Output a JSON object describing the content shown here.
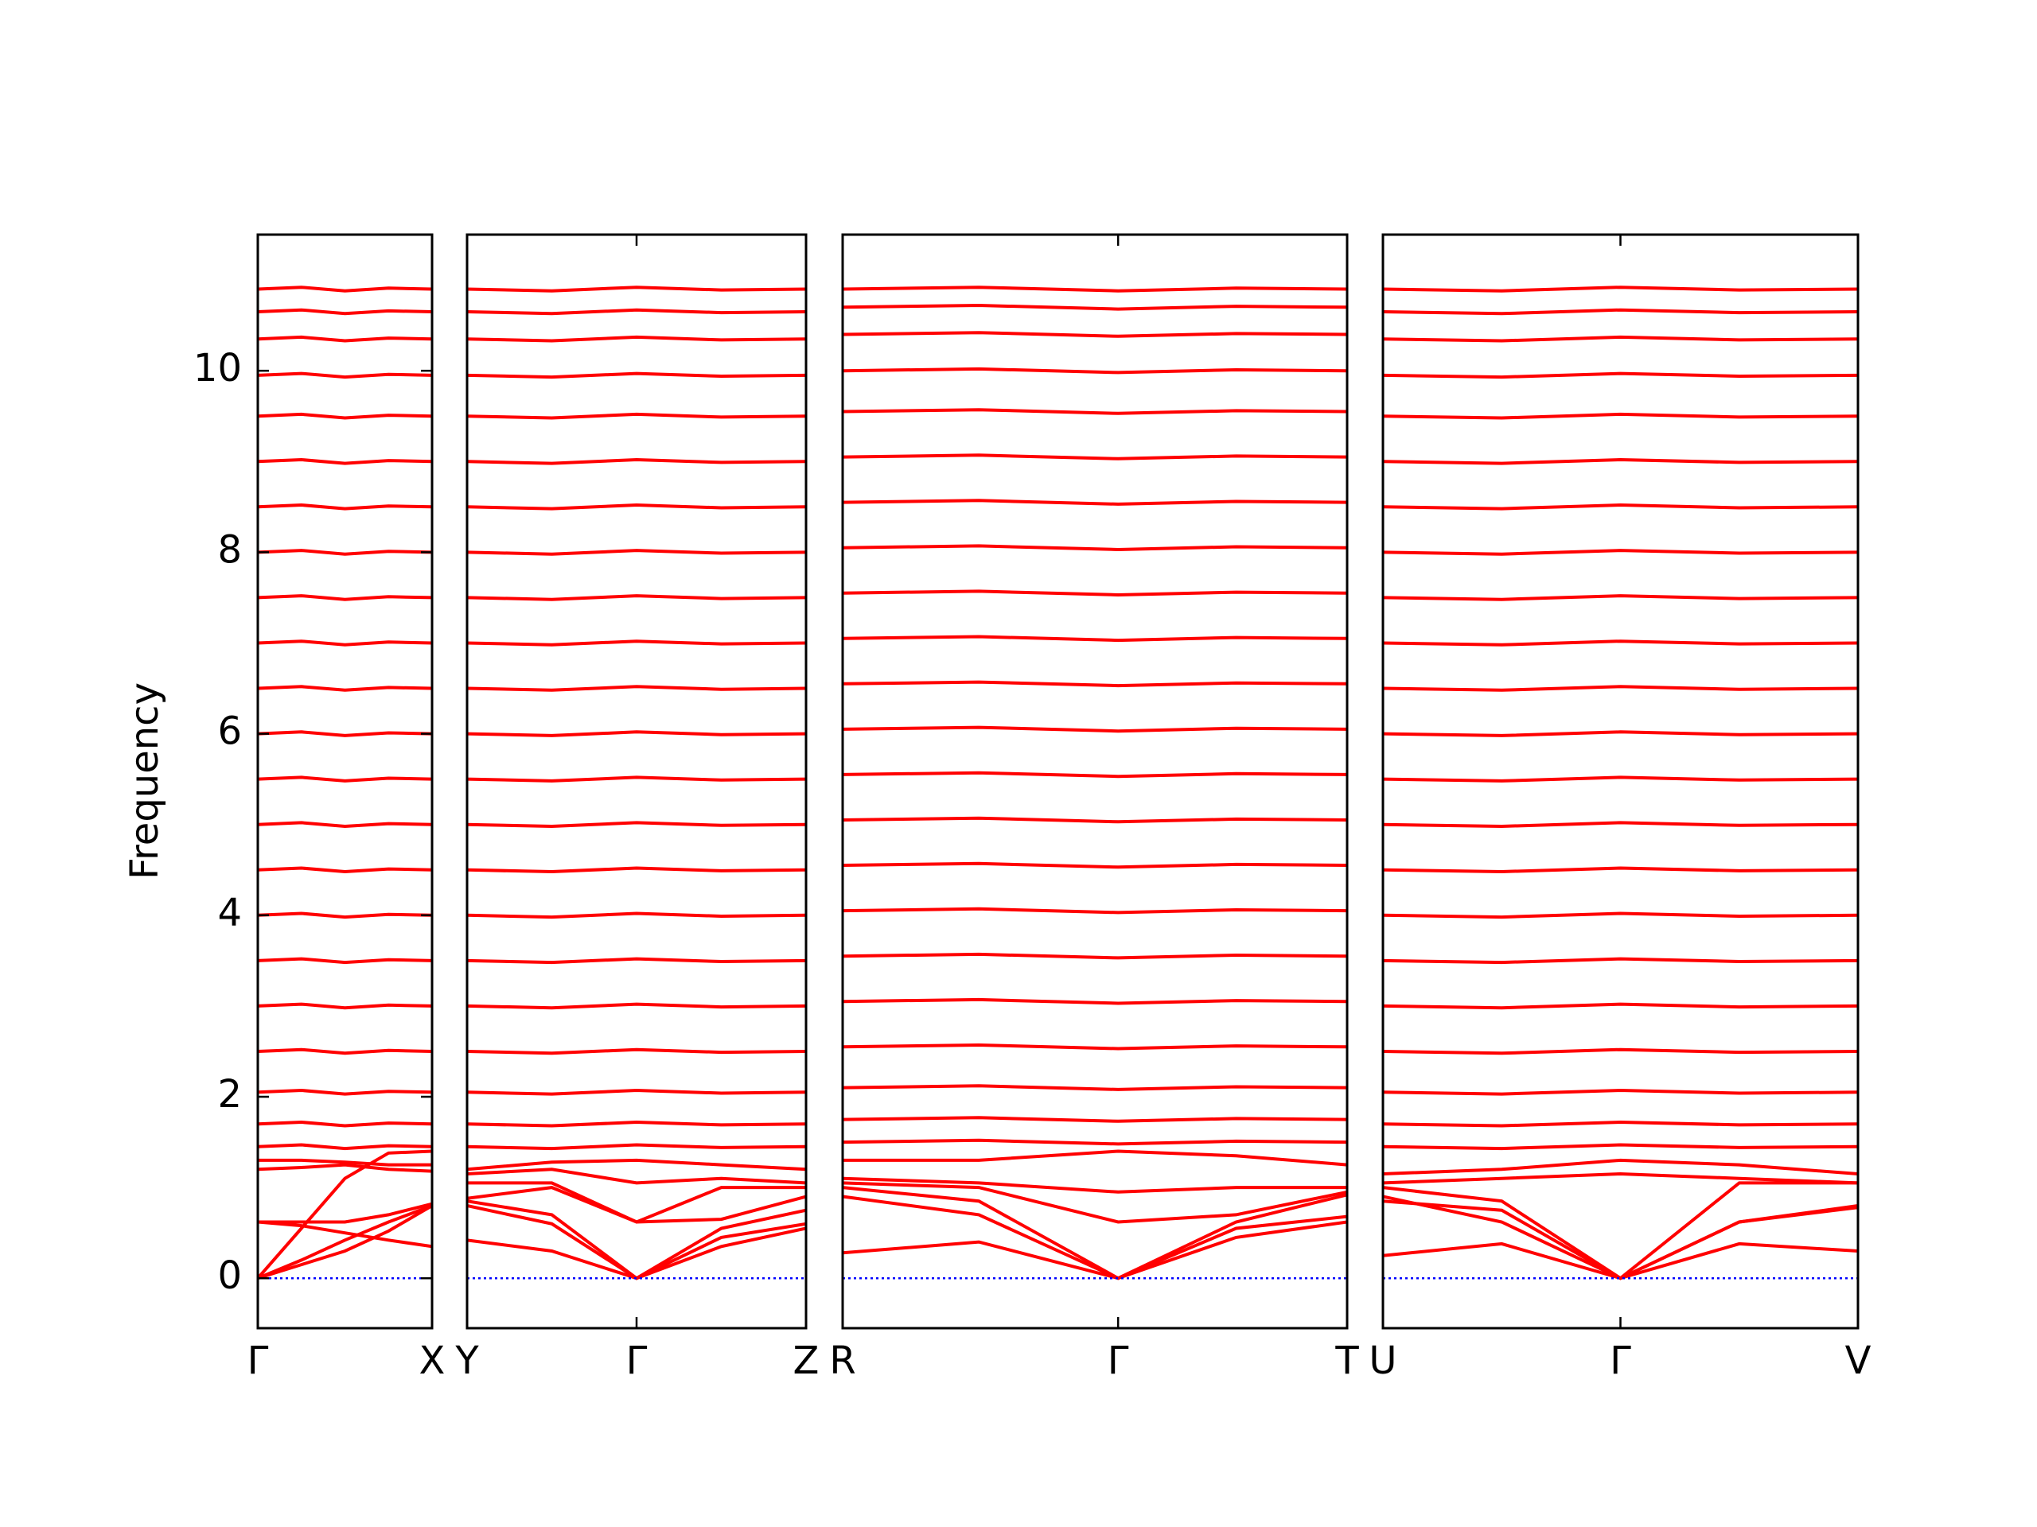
{
  "chart_data": [
    {
      "type": "line",
      "ylabel": "Frequency",
      "color": "#ff0000",
      "x": [
        0,
        0.25,
        0.5,
        0.75,
        1
      ],
      "xlim": [
        0,
        1
      ],
      "xticks": [
        {
          "value": 0,
          "label": "Γ"
        },
        {
          "value": 1,
          "label": "X"
        }
      ],
      "ylim": [
        -0.55,
        11.5
      ],
      "yticks": [
        0,
        2,
        4,
        6,
        8,
        10
      ],
      "series": [
        {
          "values": [
            0,
            0.2,
            0.42,
            0.62,
            0.8
          ]
        },
        {
          "values": [
            0,
            0.15,
            0.3,
            0.52,
            0.8
          ]
        },
        {
          "values": [
            0,
            0.55,
            1.1,
            1.38,
            1.4
          ]
        },
        {
          "values": [
            0.62,
            0.58,
            0.5,
            0.42,
            0.35
          ]
        },
        {
          "values": [
            0.62,
            0.62,
            0.62,
            0.7,
            0.82
          ]
        },
        {
          "values": [
            1.2,
            1.22,
            1.25,
            1.2,
            1.18
          ]
        },
        {
          "values": [
            1.3,
            1.3,
            1.28,
            1.25,
            1.25
          ]
        },
        {
          "values": [
            1.45,
            1.47,
            1.43,
            1.46,
            1.45
          ]
        },
        {
          "values": [
            1.7,
            1.72,
            1.68,
            1.71,
            1.7
          ]
        },
        {
          "values": [
            2.05,
            2.07,
            2.03,
            2.06,
            2.05
          ]
        },
        {
          "values": [
            2.5,
            2.52,
            2.48,
            2.51,
            2.5
          ]
        },
        {
          "values": [
            3.0,
            3.02,
            2.98,
            3.01,
            3.0
          ]
        },
        {
          "values": [
            3.5,
            3.52,
            3.48,
            3.51,
            3.5
          ]
        },
        {
          "values": [
            4.0,
            4.02,
            3.98,
            4.01,
            4.0
          ]
        },
        {
          "values": [
            4.5,
            4.52,
            4.48,
            4.51,
            4.5
          ]
        },
        {
          "values": [
            5.0,
            5.02,
            4.98,
            5.01,
            5.0
          ]
        },
        {
          "values": [
            5.5,
            5.52,
            5.48,
            5.51,
            5.5
          ]
        },
        {
          "values": [
            6.0,
            6.02,
            5.98,
            6.01,
            6.0
          ]
        },
        {
          "values": [
            6.5,
            6.52,
            6.48,
            6.51,
            6.5
          ]
        },
        {
          "values": [
            7.0,
            7.02,
            6.98,
            7.01,
            7.0
          ]
        },
        {
          "values": [
            7.5,
            7.52,
            7.48,
            7.51,
            7.5
          ]
        },
        {
          "values": [
            8.0,
            8.02,
            7.98,
            8.01,
            8.0
          ]
        },
        {
          "values": [
            8.5,
            8.52,
            8.48,
            8.51,
            8.5
          ]
        },
        {
          "values": [
            9.0,
            9.02,
            8.98,
            9.01,
            9.0
          ]
        },
        {
          "values": [
            9.5,
            9.52,
            9.48,
            9.51,
            9.5
          ]
        },
        {
          "values": [
            9.95,
            9.97,
            9.93,
            9.96,
            9.95
          ]
        },
        {
          "values": [
            10.35,
            10.37,
            10.33,
            10.36,
            10.35
          ]
        },
        {
          "values": [
            10.65,
            10.67,
            10.63,
            10.66,
            10.65
          ]
        },
        {
          "values": [
            10.9,
            10.92,
            10.88,
            10.91,
            10.9
          ]
        },
        {
          "color": "#0000ff",
          "linestyle": "dotted",
          "values": [
            0,
            0,
            0,
            0,
            0
          ]
        }
      ]
    },
    {
      "type": "line",
      "color": "#ff0000",
      "x": [
        0,
        0.25,
        0.5,
        0.75,
        1
      ],
      "xlim": [
        0,
        1
      ],
      "xticks": [
        {
          "value": 0,
          "label": "Y"
        },
        {
          "value": 0.5,
          "label": "Γ"
        },
        {
          "value": 1,
          "label": "Z"
        }
      ],
      "ylim": [
        -0.55,
        11.5
      ],
      "series": [
        {
          "values": [
            0.42,
            0.3,
            0,
            0.35,
            0.55
          ]
        },
        {
          "values": [
            0.8,
            0.6,
            0,
            0.45,
            0.6
          ]
        },
        {
          "values": [
            0.85,
            0.7,
            0,
            0.55,
            0.75
          ]
        },
        {
          "values": [
            0.88,
            1.0,
            0.62,
            0.65,
            0.9
          ]
        },
        {
          "values": [
            1.05,
            1.05,
            0.62,
            1.0,
            1.0
          ]
        },
        {
          "values": [
            1.15,
            1.2,
            1.05,
            1.1,
            1.05
          ]
        },
        {
          "values": [
            1.2,
            1.28,
            1.3,
            1.25,
            1.2
          ]
        },
        {
          "values": [
            1.45,
            1.43,
            1.47,
            1.44,
            1.45
          ]
        },
        {
          "values": [
            1.7,
            1.68,
            1.72,
            1.69,
            1.7
          ]
        },
        {
          "values": [
            2.05,
            2.03,
            2.07,
            2.04,
            2.05
          ]
        },
        {
          "values": [
            2.5,
            2.48,
            2.52,
            2.49,
            2.5
          ]
        },
        {
          "values": [
            3.0,
            2.98,
            3.02,
            2.99,
            3.0
          ]
        },
        {
          "values": [
            3.5,
            3.48,
            3.52,
            3.49,
            3.5
          ]
        },
        {
          "values": [
            4.0,
            3.98,
            4.02,
            3.99,
            4.0
          ]
        },
        {
          "values": [
            4.5,
            4.48,
            4.52,
            4.49,
            4.5
          ]
        },
        {
          "values": [
            5.0,
            4.98,
            5.02,
            4.99,
            5.0
          ]
        },
        {
          "values": [
            5.5,
            5.48,
            5.52,
            5.49,
            5.5
          ]
        },
        {
          "values": [
            6.0,
            5.98,
            6.02,
            5.99,
            6.0
          ]
        },
        {
          "values": [
            6.5,
            6.48,
            6.52,
            6.49,
            6.5
          ]
        },
        {
          "values": [
            7.0,
            6.98,
            7.02,
            6.99,
            7.0
          ]
        },
        {
          "values": [
            7.5,
            7.48,
            7.52,
            7.49,
            7.5
          ]
        },
        {
          "values": [
            8.0,
            7.98,
            8.02,
            7.99,
            8.0
          ]
        },
        {
          "values": [
            8.5,
            8.48,
            8.52,
            8.49,
            8.5
          ]
        },
        {
          "values": [
            9.0,
            8.98,
            9.02,
            8.99,
            9.0
          ]
        },
        {
          "values": [
            9.5,
            9.48,
            9.52,
            9.49,
            9.5
          ]
        },
        {
          "values": [
            9.95,
            9.93,
            9.97,
            9.94,
            9.95
          ]
        },
        {
          "values": [
            10.35,
            10.33,
            10.37,
            10.34,
            10.35
          ]
        },
        {
          "values": [
            10.65,
            10.63,
            10.67,
            10.64,
            10.65
          ]
        },
        {
          "values": [
            10.9,
            10.88,
            10.92,
            10.89,
            10.9
          ]
        },
        {
          "color": "#0000ff",
          "linestyle": "dotted",
          "values": [
            0,
            0,
            0,
            0,
            0
          ]
        }
      ]
    },
    {
      "type": "line",
      "color": "#ff0000",
      "x": [
        0,
        0.27,
        0.546,
        0.78,
        1
      ],
      "xlim": [
        0,
        1
      ],
      "xticks": [
        {
          "value": 0,
          "label": "R"
        },
        {
          "value": 0.546,
          "label": "Γ"
        },
        {
          "value": 1,
          "label": "T"
        }
      ],
      "ylim": [
        -0.55,
        11.5
      ],
      "series": [
        {
          "values": [
            0.28,
            0.4,
            0,
            0.45,
            0.62
          ]
        },
        {
          "values": [
            0.9,
            0.7,
            0,
            0.55,
            0.68
          ]
        },
        {
          "values": [
            1.0,
            0.85,
            0,
            0.62,
            0.92
          ]
        },
        {
          "values": [
            1.05,
            1.0,
            0.62,
            0.7,
            0.95
          ]
        },
        {
          "values": [
            1.1,
            1.05,
            0.95,
            1.0,
            1.0
          ]
        },
        {
          "values": [
            1.3,
            1.3,
            1.4,
            1.35,
            1.25
          ]
        },
        {
          "values": [
            1.5,
            1.52,
            1.48,
            1.51,
            1.5
          ]
        },
        {
          "values": [
            1.75,
            1.77,
            1.73,
            1.76,
            1.75
          ]
        },
        {
          "values": [
            2.1,
            2.12,
            2.08,
            2.11,
            2.1
          ]
        },
        {
          "values": [
            2.55,
            2.57,
            2.53,
            2.56,
            2.55
          ]
        },
        {
          "values": [
            3.05,
            3.07,
            3.03,
            3.06,
            3.05
          ]
        },
        {
          "values": [
            3.55,
            3.57,
            3.53,
            3.56,
            3.55
          ]
        },
        {
          "values": [
            4.05,
            4.07,
            4.03,
            4.06,
            4.05
          ]
        },
        {
          "values": [
            4.55,
            4.57,
            4.53,
            4.56,
            4.55
          ]
        },
        {
          "values": [
            5.05,
            5.07,
            5.03,
            5.06,
            5.05
          ]
        },
        {
          "values": [
            5.55,
            5.57,
            5.53,
            5.56,
            5.55
          ]
        },
        {
          "values": [
            6.05,
            6.07,
            6.03,
            6.06,
            6.05
          ]
        },
        {
          "values": [
            6.55,
            6.57,
            6.53,
            6.56,
            6.55
          ]
        },
        {
          "values": [
            7.05,
            7.07,
            7.03,
            7.06,
            7.05
          ]
        },
        {
          "values": [
            7.55,
            7.57,
            7.53,
            7.56,
            7.55
          ]
        },
        {
          "values": [
            8.05,
            8.07,
            8.03,
            8.06,
            8.05
          ]
        },
        {
          "values": [
            8.55,
            8.57,
            8.53,
            8.56,
            8.55
          ]
        },
        {
          "values": [
            9.05,
            9.07,
            9.03,
            9.06,
            9.05
          ]
        },
        {
          "values": [
            9.55,
            9.57,
            9.53,
            9.56,
            9.55
          ]
        },
        {
          "values": [
            10.0,
            10.02,
            9.98,
            10.01,
            10.0
          ]
        },
        {
          "values": [
            10.4,
            10.42,
            10.38,
            10.41,
            10.4
          ]
        },
        {
          "values": [
            10.7,
            10.72,
            10.68,
            10.71,
            10.7
          ]
        },
        {
          "values": [
            10.9,
            10.92,
            10.88,
            10.91,
            10.9
          ]
        },
        {
          "color": "#0000ff",
          "linestyle": "dotted",
          "values": [
            0,
            0,
            0,
            0,
            0
          ]
        }
      ]
    },
    {
      "type": "line",
      "color": "#ff0000",
      "x": [
        0,
        0.25,
        0.5,
        0.75,
        1
      ],
      "xlim": [
        0,
        1
      ],
      "xticks": [
        {
          "value": 0,
          "label": "U"
        },
        {
          "value": 0.5,
          "label": "Γ"
        },
        {
          "value": 1,
          "label": "V"
        }
      ],
      "ylim": [
        -0.55,
        11.5
      ],
      "series": [
        {
          "values": [
            0.25,
            0.38,
            0,
            0.38,
            0.3
          ]
        },
        {
          "values": [
            0.85,
            0.75,
            0,
            0.62,
            0.78
          ]
        },
        {
          "values": [
            0.9,
            0.62,
            0,
            0.62,
            0.8
          ]
        },
        {
          "values": [
            1.0,
            0.85,
            0,
            1.05,
            1.05
          ]
        },
        {
          "values": [
            1.05,
            1.1,
            1.15,
            1.1,
            1.05
          ]
        },
        {
          "values": [
            1.15,
            1.2,
            1.3,
            1.25,
            1.15
          ]
        },
        {
          "values": [
            1.45,
            1.43,
            1.47,
            1.44,
            1.45
          ]
        },
        {
          "values": [
            1.7,
            1.68,
            1.72,
            1.69,
            1.7
          ]
        },
        {
          "values": [
            2.05,
            2.03,
            2.07,
            2.04,
            2.05
          ]
        },
        {
          "values": [
            2.5,
            2.48,
            2.52,
            2.49,
            2.5
          ]
        },
        {
          "values": [
            3.0,
            2.98,
            3.02,
            2.99,
            3.0
          ]
        },
        {
          "values": [
            3.5,
            3.48,
            3.52,
            3.49,
            3.5
          ]
        },
        {
          "values": [
            4.0,
            3.98,
            4.02,
            3.99,
            4.0
          ]
        },
        {
          "values": [
            4.5,
            4.48,
            4.52,
            4.49,
            4.5
          ]
        },
        {
          "values": [
            5.0,
            4.98,
            5.02,
            4.99,
            5.0
          ]
        },
        {
          "values": [
            5.5,
            5.48,
            5.52,
            5.49,
            5.5
          ]
        },
        {
          "values": [
            6.0,
            5.98,
            6.02,
            5.99,
            6.0
          ]
        },
        {
          "values": [
            6.5,
            6.48,
            6.52,
            6.49,
            6.5
          ]
        },
        {
          "values": [
            7.0,
            6.98,
            7.02,
            6.99,
            7.0
          ]
        },
        {
          "values": [
            7.5,
            7.48,
            7.52,
            7.49,
            7.5
          ]
        },
        {
          "values": [
            8.0,
            7.98,
            8.02,
            7.99,
            8.0
          ]
        },
        {
          "values": [
            8.5,
            8.48,
            8.52,
            8.49,
            8.5
          ]
        },
        {
          "values": [
            9.0,
            8.98,
            9.02,
            8.99,
            9.0
          ]
        },
        {
          "values": [
            9.5,
            9.48,
            9.52,
            9.49,
            9.5
          ]
        },
        {
          "values": [
            9.95,
            9.93,
            9.97,
            9.94,
            9.95
          ]
        },
        {
          "values": [
            10.35,
            10.33,
            10.37,
            10.34,
            10.35
          ]
        },
        {
          "values": [
            10.65,
            10.63,
            10.67,
            10.64,
            10.65
          ]
        },
        {
          "values": [
            10.9,
            10.88,
            10.92,
            10.89,
            10.9
          ]
        },
        {
          "color": "#0000ff",
          "linestyle": "dotted",
          "values": [
            0,
            0,
            0,
            0,
            0
          ]
        }
      ]
    }
  ]
}
